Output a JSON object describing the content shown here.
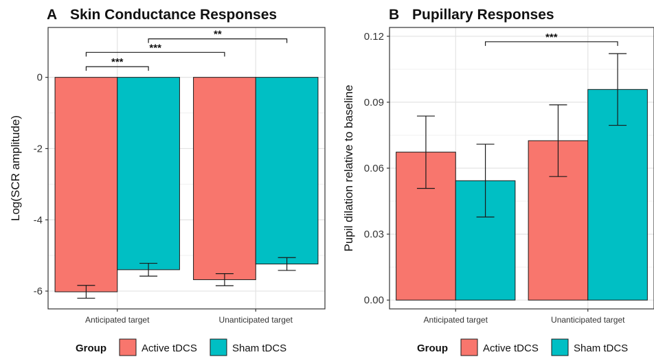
{
  "chart_data": [
    {
      "type": "bar",
      "panel_letter": "A",
      "title": "Skin Conductance Responses",
      "ylabel": "Log(SCR amplitude)",
      "xlabel": "",
      "categories": [
        "Anticipated target",
        "Unanticipated target"
      ],
      "ylim": [
        -6.5,
        1.4
      ],
      "yticks": [
        0,
        -2,
        -4,
        -6
      ],
      "yticklabels": [
        "0",
        "-2",
        "-4",
        "-6"
      ],
      "grid": true,
      "series": [
        {
          "name": "Active tDCS",
          "color": "#F8766D",
          "values": [
            -6.02,
            -5.68
          ],
          "err_low": [
            -6.2,
            -5.85
          ],
          "err_high": [
            -5.84,
            -5.51
          ]
        },
        {
          "name": "Sham tDCS",
          "color": "#00BFC4",
          "values": [
            -5.4,
            -5.24
          ],
          "err_low": [
            -5.58,
            -5.42
          ],
          "err_high": [
            -5.22,
            -5.06
          ]
        }
      ],
      "significance": [
        {
          "label": "***",
          "from": [
            0,
            0
          ],
          "to": [
            0,
            1
          ],
          "y": 0.3
        },
        {
          "label": "***",
          "from": [
            0,
            0
          ],
          "to": [
            1,
            0
          ],
          "y": 0.7
        },
        {
          "label": "**",
          "from": [
            0,
            1
          ],
          "to": [
            1,
            1
          ],
          "y": 1.08
        }
      ]
    },
    {
      "type": "bar",
      "panel_letter": "B",
      "title": "Pupillary Responses",
      "ylabel": "Pupil dilation relative to baseline",
      "xlabel": "",
      "categories": [
        "Anticipated target",
        "Unanticipated target"
      ],
      "ylim": [
        -0.004,
        0.124
      ],
      "yticks": [
        0.0,
        0.03,
        0.06,
        0.09,
        0.12
      ],
      "yticklabels": [
        "0.00",
        "0.03",
        "0.06",
        "0.09",
        "0.12"
      ],
      "grid": true,
      "series": [
        {
          "name": "Active tDCS",
          "color": "#F8766D",
          "values": [
            0.0673,
            0.0725
          ],
          "err_low": [
            0.0508,
            0.0562
          ],
          "err_high": [
            0.0837,
            0.0888
          ]
        },
        {
          "name": "Sham tDCS",
          "color": "#00BFC4",
          "values": [
            0.0543,
            0.0958
          ],
          "err_low": [
            0.0378,
            0.0795
          ],
          "err_high": [
            0.0709,
            0.1121
          ]
        }
      ],
      "significance": [
        {
          "label": "***",
          "from": [
            0,
            1
          ],
          "to": [
            1,
            1
          ],
          "y": 0.1175
        }
      ]
    }
  ],
  "legend": {
    "title": "Group",
    "entries": [
      "Active tDCS",
      "Sham tDCS"
    ],
    "colors": [
      "#F8766D",
      "#00BFC4"
    ],
    "placement": "bottom"
  }
}
